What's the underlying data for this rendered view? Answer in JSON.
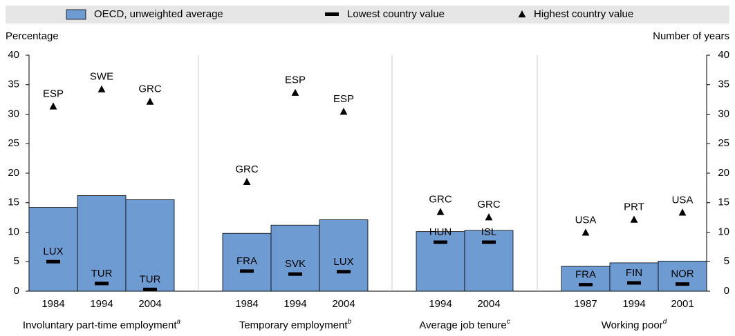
{
  "chart_data": {
    "type": "bar",
    "legend": [
      {
        "name": "OECD, unweighted average",
        "color": "#6f9bd3"
      },
      {
        "name": "Lowest country value",
        "color": "#000000"
      },
      {
        "name": "Highest country value",
        "color": "#000000"
      }
    ],
    "ylabel": "Percentage",
    "y2label": "Number of years",
    "ylim": [
      0,
      40
    ],
    "yticks": [
      0,
      5,
      10,
      15,
      20,
      25,
      30,
      35,
      40
    ],
    "y2lim": [
      0,
      40
    ],
    "y2ticks": [
      0,
      5,
      10,
      15,
      20,
      25,
      30,
      35,
      40
    ],
    "groups": [
      {
        "name": "Involuntary part-time employment",
        "note": "a",
        "categories": [
          "1984",
          "1994",
          "2004"
        ],
        "average": [
          14.2,
          16.2,
          15.5
        ],
        "lowest": [
          5.0,
          1.3,
          0.3
        ],
        "lowest_labels": [
          "LUX",
          "TUR",
          "TUR"
        ],
        "highest": [
          31.3,
          34.2,
          32.1
        ],
        "highest_labels": [
          "ESP",
          "SWE",
          "GRC"
        ]
      },
      {
        "name": "Temporary employment",
        "note": "b",
        "categories": [
          "1984",
          "1994",
          "2004"
        ],
        "average": [
          9.8,
          11.2,
          12.1
        ],
        "lowest": [
          3.4,
          2.9,
          3.3
        ],
        "lowest_labels": [
          "FRA",
          "SVK",
          "LUX"
        ],
        "highest": [
          18.5,
          33.6,
          30.4
        ],
        "highest_labels": [
          "GRC",
          "ESP",
          "ESP"
        ]
      },
      {
        "name": "Average job tenure",
        "note": "c",
        "axis": "y2",
        "categories": [
          "1994",
          "2004"
        ],
        "average": [
          10.1,
          10.3
        ],
        "lowest": [
          8.3,
          8.3
        ],
        "lowest_labels": [
          "HUN",
          "ISL"
        ],
        "highest": [
          13.4,
          12.5
        ],
        "highest_labels": [
          "GRC",
          "GRC"
        ]
      },
      {
        "name": "Working poor",
        "note": "d",
        "categories": [
          "1987",
          "1994",
          "2001"
        ],
        "average": [
          4.2,
          4.8,
          5.1
        ],
        "lowest": [
          1.1,
          1.4,
          1.2
        ],
        "lowest_labels": [
          "FRA",
          "FIN",
          "NOR"
        ],
        "highest": [
          9.9,
          12.1,
          13.3
        ],
        "highest_labels": [
          "USA",
          "PRT",
          "USA"
        ]
      }
    ]
  }
}
